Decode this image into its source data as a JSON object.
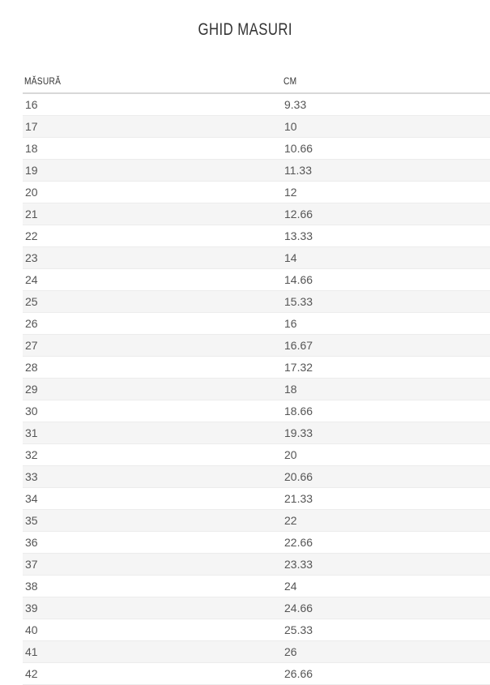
{
  "page": {
    "title": "GHID MASURI"
  },
  "table": {
    "columns": [
      {
        "key": "size",
        "label": "MĂSURĂ"
      },
      {
        "key": "cm",
        "label": "CM"
      }
    ],
    "rows": [
      {
        "size": "16",
        "cm": "9.33"
      },
      {
        "size": "17",
        "cm": "10"
      },
      {
        "size": "18",
        "cm": "10.66"
      },
      {
        "size": "19",
        "cm": "11.33"
      },
      {
        "size": "20",
        "cm": "12"
      },
      {
        "size": "21",
        "cm": "12.66"
      },
      {
        "size": "22",
        "cm": "13.33"
      },
      {
        "size": "23",
        "cm": "14"
      },
      {
        "size": "24",
        "cm": "14.66"
      },
      {
        "size": "25",
        "cm": "15.33"
      },
      {
        "size": "26",
        "cm": "16"
      },
      {
        "size": "27",
        "cm": "16.67"
      },
      {
        "size": "28",
        "cm": "17.32"
      },
      {
        "size": "29",
        "cm": "18"
      },
      {
        "size": "30",
        "cm": "18.66"
      },
      {
        "size": "31",
        "cm": "19.33"
      },
      {
        "size": "32",
        "cm": "20"
      },
      {
        "size": "33",
        "cm": "20.66"
      },
      {
        "size": "34",
        "cm": "21.33"
      },
      {
        "size": "35",
        "cm": "22"
      },
      {
        "size": "36",
        "cm": "22.66"
      },
      {
        "size": "37",
        "cm": "23.33"
      },
      {
        "size": "38",
        "cm": "24"
      },
      {
        "size": "39",
        "cm": "24.66"
      },
      {
        "size": "40",
        "cm": "25.33"
      },
      {
        "size": "41",
        "cm": "26"
      },
      {
        "size": "42",
        "cm": "26.66"
      }
    ]
  },
  "colors": {
    "stripe": "#f5f5f5",
    "row_border": "#ececec",
    "header_border": "#d8d8d8",
    "body_text": "#555555",
    "heading_text": "#333333",
    "background": "#ffffff"
  }
}
